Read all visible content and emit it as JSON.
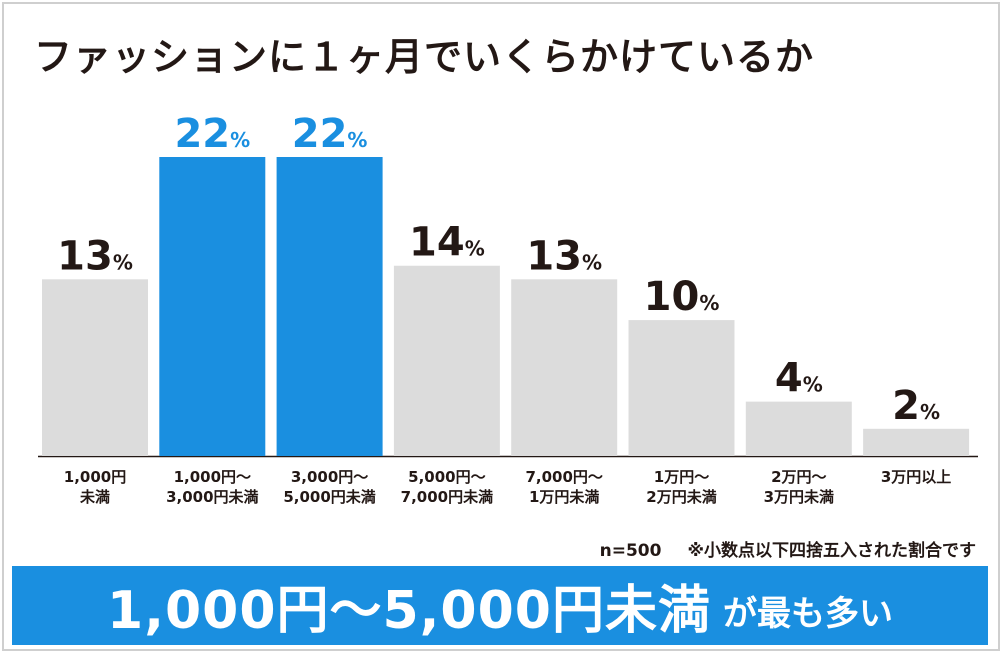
{
  "title": "ファッションに１ヶ月でいくらかけているか",
  "note": {
    "sample": "n=500",
    "rounding": "※小数点以下四捨五入された割合です"
  },
  "banner": {
    "highlight": "1,000円〜5,000円未満",
    "suffix": "が最も多い"
  },
  "colors": {
    "highlight_bar": "#1a8fe0",
    "normal_bar": "#dcdcdc",
    "text": "#231815",
    "highlight_text": "#1a8fe0"
  },
  "chart_data": {
    "type": "bar",
    "title": "ファッションに１ヶ月でいくらかけているか",
    "unit": "%",
    "categories": [
      [
        "1,000円",
        "未満"
      ],
      [
        "1,000円〜",
        "3,000円未満"
      ],
      [
        "3,000円〜",
        "5,000円未満"
      ],
      [
        "5,000円〜",
        "7,000円未満"
      ],
      [
        "7,000円〜",
        "1万円未満"
      ],
      [
        "1万円〜",
        "2万円未満"
      ],
      [
        "2万円〜",
        "3万円未満"
      ],
      [
        "3万円以上"
      ]
    ],
    "values": [
      13,
      22,
      22,
      14,
      13,
      10,
      4,
      2
    ],
    "highlighted": [
      1,
      2
    ],
    "ylim": [
      0,
      22
    ],
    "grid": false,
    "xlabel": "",
    "ylabel": ""
  }
}
